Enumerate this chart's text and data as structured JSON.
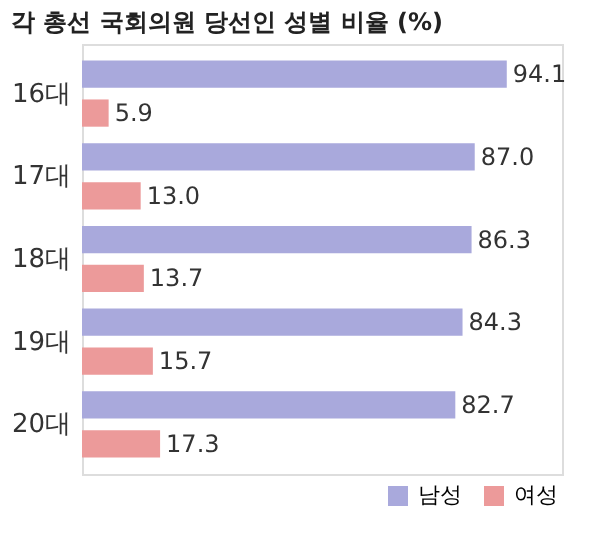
{
  "chart_data": {
    "type": "bar",
    "orientation": "horizontal",
    "title": "각 총선 국회의원 당선인 성별 비율 (%)",
    "categories": [
      "16대",
      "17대",
      "18대",
      "19대",
      "20대"
    ],
    "series": [
      {
        "name": "남성",
        "color": "#a9a9dc",
        "values": [
          94.1,
          87.0,
          86.3,
          84.3,
          82.7
        ],
        "value_labels": [
          "94.1",
          "87.0",
          "86.3",
          "84.3",
          "82.7"
        ]
      },
      {
        "name": "여성",
        "color": "#ec9a9a",
        "values": [
          5.9,
          13.0,
          13.7,
          15.7,
          17.3
        ],
        "value_labels": [
          "5.9",
          "13.0",
          "13.7",
          "15.7",
          "17.3"
        ]
      }
    ],
    "legend": "bottom right",
    "tick_labels": "y"
  }
}
